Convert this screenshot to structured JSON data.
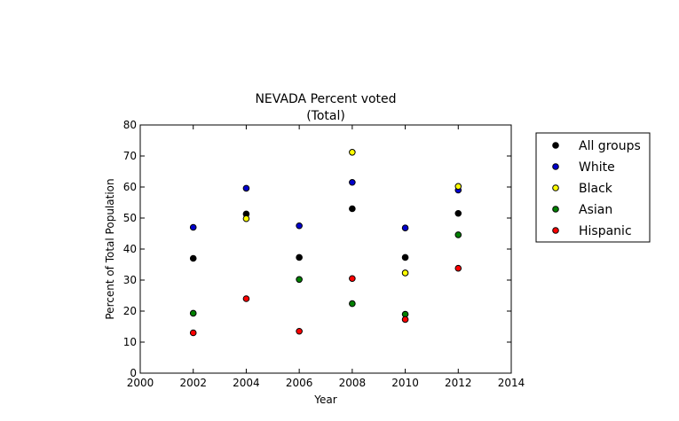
{
  "chart_data": {
    "type": "scatter",
    "title": "NEVADA Percent voted",
    "subtitle": "(Total)",
    "xlabel": "Year",
    "ylabel": "Percent of Total Population",
    "xlim": [
      2000,
      2014
    ],
    "ylim": [
      0,
      80
    ],
    "xticks": [
      2000,
      2002,
      2004,
      2006,
      2008,
      2010,
      2012,
      2014
    ],
    "yticks": [
      0,
      10,
      20,
      30,
      40,
      50,
      60,
      70,
      80
    ],
    "x": [
      2002,
      2004,
      2006,
      2008,
      2010,
      2012
    ],
    "grid": false,
    "legend_position": "right",
    "series": [
      {
        "name": "All groups",
        "color": "#000000",
        "values": [
          37.0,
          51.3,
          37.3,
          53.0,
          37.3,
          51.5
        ]
      },
      {
        "name": "White",
        "color": "#0000cc",
        "values": [
          47.0,
          59.6,
          47.5,
          61.5,
          46.8,
          59.0
        ]
      },
      {
        "name": "Black",
        "color": "#ffff00",
        "values": [
          null,
          49.8,
          null,
          71.2,
          32.3,
          60.2
        ]
      },
      {
        "name": "Asian",
        "color": "#008000",
        "values": [
          19.3,
          null,
          30.2,
          22.4,
          19.0,
          44.6
        ]
      },
      {
        "name": "Hispanic",
        "color": "#ff0000",
        "values": [
          13.0,
          24.0,
          13.5,
          30.5,
          17.3,
          33.8
        ]
      }
    ]
  }
}
